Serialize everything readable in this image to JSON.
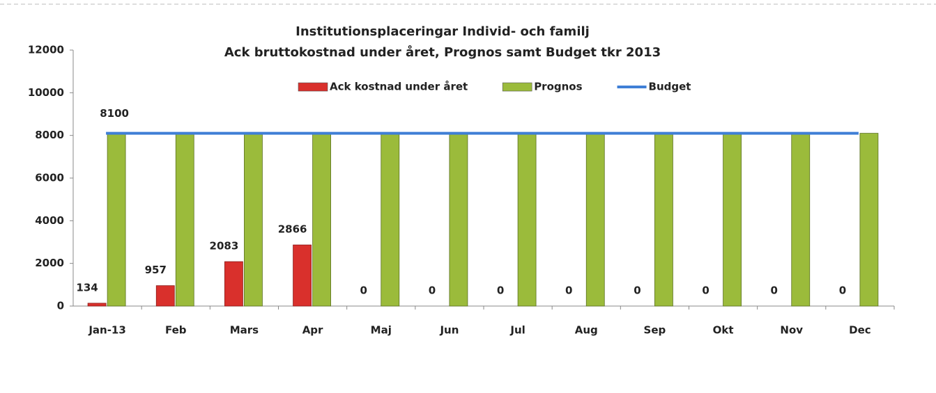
{
  "chart_data": {
    "type": "bar",
    "title": [
      "Institutionsplaceringar Individ- och familj",
      "Ack bruttokostnad under året, Prognos samt Budget  tkr 2013"
    ],
    "categories": [
      "Jan-13",
      "Feb",
      "Mars",
      "Apr",
      "Maj",
      "Jun",
      "Jul",
      "Aug",
      "Sep",
      "Okt",
      "Nov",
      "Dec"
    ],
    "series": [
      {
        "name": "Ack kostnad under året",
        "color": "#d9302c",
        "values": [
          134,
          957,
          2083,
          2866,
          0,
          0,
          0,
          0,
          0,
          0,
          0,
          0
        ]
      },
      {
        "name": "Prognos",
        "color": "#9bbb3b",
        "values": [
          8100,
          8100,
          8100,
          8100,
          8100,
          8100,
          8100,
          8100,
          8100,
          8100,
          8100,
          8100
        ]
      },
      {
        "name": "Budget",
        "color": "#3f7fd6",
        "type": "line",
        "values": [
          8100,
          8100,
          8100,
          8100,
          8100,
          8100,
          8100,
          8100,
          8100,
          8100,
          8100,
          8100
        ]
      }
    ],
    "ylim": [
      0,
      12000
    ],
    "yticks": [
      0,
      2000,
      4000,
      6000,
      8000,
      10000,
      12000
    ],
    "grid": false,
    "legend": "top"
  }
}
